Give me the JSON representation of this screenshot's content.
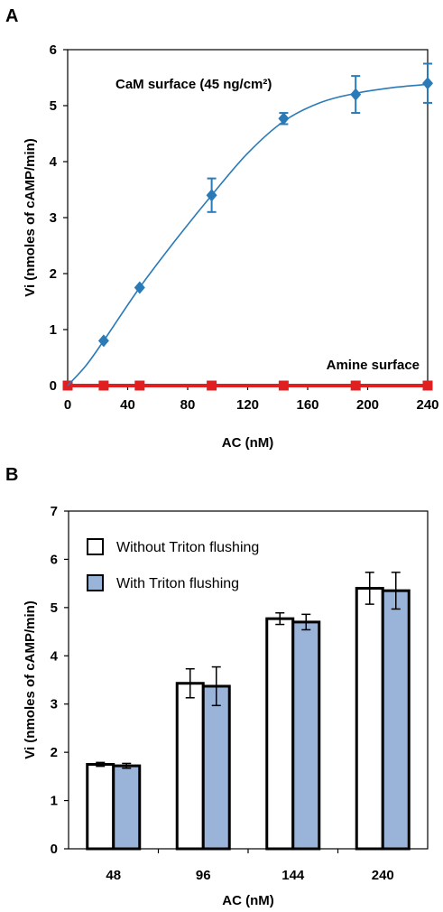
{
  "chart_data": [
    {
      "panel_label": "A",
      "type": "line",
      "xlabel": "AC (nM)",
      "ylabel": "Vi (nmoles of cAMP/min)",
      "xlim": [
        0,
        240
      ],
      "ylim": [
        0,
        6
      ],
      "x_ticks": [
        "0",
        "40",
        "80",
        "120",
        "160",
        "200",
        "240"
      ],
      "y_ticks": [
        "0",
        "1",
        "2",
        "3",
        "4",
        "5",
        "6"
      ],
      "grid": false,
      "annotations": [
        {
          "text": "CaM surface (45 ng/cm²)",
          "series": "CaM surface"
        },
        {
          "text": "Amine surface",
          "series": "Amine surface"
        }
      ],
      "series": [
        {
          "name": "CaM surface",
          "color": "#2a7ab8",
          "marker": "diamond",
          "x": [
            0,
            24,
            48,
            96,
            144,
            192,
            240
          ],
          "y": [
            0,
            0.8,
            1.75,
            3.4,
            4.77,
            5.2,
            5.4
          ],
          "err": [
            0,
            0,
            0,
            0.3,
            0.1,
            0.33,
            0.35
          ],
          "curve": [
            [
              0,
              0
            ],
            [
              12,
              0.35
            ],
            [
              24,
              0.8
            ],
            [
              48,
              1.75
            ],
            [
              72,
              2.6
            ],
            [
              96,
              3.4
            ],
            [
              120,
              4.15
            ],
            [
              144,
              4.72
            ],
            [
              168,
              5.05
            ],
            [
              192,
              5.22
            ],
            [
              216,
              5.32
            ],
            [
              240,
              5.38
            ]
          ]
        },
        {
          "name": "Amine surface",
          "color": "#e02020",
          "marker": "square",
          "x": [
            0,
            24,
            48,
            96,
            144,
            192,
            240
          ],
          "y": [
            0,
            0,
            0,
            0,
            0,
            0,
            0
          ]
        }
      ]
    },
    {
      "panel_label": "B",
      "type": "bar",
      "xlabel": "AC (nM)",
      "ylabel": "Vi (nmoles of cAMP/min)",
      "ylim": [
        0,
        7
      ],
      "y_ticks": [
        "0",
        "1",
        "2",
        "3",
        "4",
        "5",
        "6",
        "7"
      ],
      "categories": [
        "48",
        "96",
        "144",
        "240"
      ],
      "grid": false,
      "legend_position": "top-left",
      "series": [
        {
          "name": "Without Triton flushing",
          "color": "#ffffff",
          "values": [
            1.75,
            3.43,
            4.77,
            5.4
          ],
          "err": [
            0.04,
            0.3,
            0.12,
            0.33
          ]
        },
        {
          "name": "With Triton flushing",
          "color": "#99b4d8",
          "values": [
            1.72,
            3.37,
            4.7,
            5.35
          ],
          "err": [
            0.05,
            0.4,
            0.16,
            0.38
          ]
        }
      ]
    }
  ]
}
